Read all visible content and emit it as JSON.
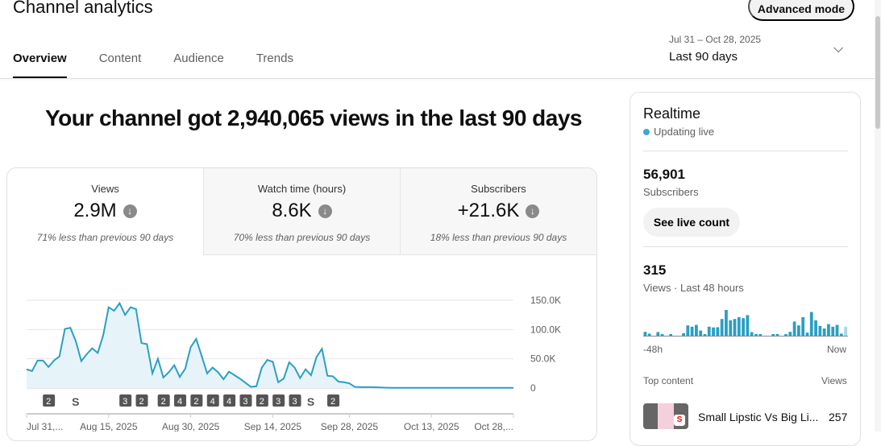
{
  "header": {
    "title": "Channel analytics",
    "advanced_mode": "Advanced mode",
    "tabs": [
      {
        "label": "Overview"
      },
      {
        "label": "Content"
      },
      {
        "label": "Audience"
      },
      {
        "label": "Trends"
      }
    ],
    "date_range": "Jul 31 – Oct 28, 2025",
    "period": "Last 90 days"
  },
  "headline": "Your channel got 2,940,065 views in the last 90 days",
  "metrics": [
    {
      "label": "Views",
      "value": "2.9M",
      "change": "71% less than previous 90 days"
    },
    {
      "label": "Watch time (hours)",
      "value": "8.6K",
      "change": "70% less than previous 90 days"
    },
    {
      "label": "Subscribers",
      "value": "+21.6K",
      "change": "18% less than previous 90 days"
    }
  ],
  "chart_data": {
    "type": "area",
    "series": [
      {
        "name": "Views",
        "values": [
          32000,
          29000,
          47000,
          47000,
          36000,
          47000,
          54000,
          101000,
          103000,
          80000,
          46000,
          58000,
          68000,
          60000,
          90000,
          138000,
          132000,
          145000,
          125000,
          138000,
          135000,
          77000,
          75000,
          25000,
          50000,
          18000,
          27000,
          39000,
          19000,
          33000,
          70000,
          84000,
          55000,
          25000,
          35000,
          27000,
          15000,
          28000,
          22000,
          16000,
          9000,
          2000,
          3000,
          35000,
          48000,
          45000,
          10000,
          16000,
          44000,
          35000,
          17000,
          32000,
          22000,
          53000,
          67000,
          21000,
          20000,
          11000,
          10000,
          8000,
          2000,
          1500,
          1500,
          1500,
          1200,
          800,
          500,
          300,
          300,
          300,
          300,
          300,
          300,
          300,
          300,
          300,
          300,
          300,
          300,
          300,
          300,
          300,
          300,
          300,
          300,
          300,
          300,
          300,
          300,
          300
        ]
      }
    ],
    "ylim": [
      0,
      150000
    ],
    "yticks": [
      "0",
      "50.0K",
      "100.0K",
      "150.0K"
    ],
    "ytick_values": [
      0,
      50000,
      100000,
      150000
    ],
    "xticks": [
      "Jul 31,...",
      "Aug 15, 2025",
      "Aug 30, 2025",
      "Sep 14, 2025",
      "Sep 28, 2025",
      "Oct 13, 2025",
      "Oct 28,..."
    ],
    "xtick_days": [
      0,
      15,
      30,
      45,
      59,
      74,
      89
    ],
    "markers": [
      {
        "day": 4,
        "label": "2"
      },
      {
        "day": 9,
        "label": "shorts"
      },
      {
        "day": 18,
        "label": "3"
      },
      {
        "day": 21,
        "label": "2"
      },
      {
        "day": 25,
        "label": "2"
      },
      {
        "day": 28,
        "label": "4"
      },
      {
        "day": 31,
        "label": "2"
      },
      {
        "day": 34,
        "label": "4"
      },
      {
        "day": 37,
        "label": "4"
      },
      {
        "day": 40,
        "label": "3"
      },
      {
        "day": 43,
        "label": "2"
      },
      {
        "day": 46,
        "label": "3"
      },
      {
        "day": 49,
        "label": "3"
      },
      {
        "day": 52,
        "label": "shorts"
      },
      {
        "day": 56,
        "label": "2"
      }
    ],
    "color": "#2a9fc4"
  },
  "realtime": {
    "title": "Realtime",
    "status": "Updating live",
    "subscribers": "56,901",
    "subscribers_label": "Subscribers",
    "see_live": "See live count",
    "views": "315",
    "views_label": "Views · Last 48 hours",
    "start": "-48h",
    "end": "Now",
    "hourly": [
      15,
      8,
      0,
      14,
      6,
      0,
      5,
      0,
      0,
      10,
      40,
      35,
      42,
      20,
      6,
      35,
      32,
      33,
      65,
      100,
      60,
      65,
      72,
      68,
      80,
      14,
      5,
      5,
      0,
      0,
      5,
      5,
      0,
      6,
      15,
      55,
      40,
      72,
      12,
      92,
      60,
      38,
      28,
      45,
      35,
      42,
      8,
      35
    ],
    "top_content_label": "Top content",
    "views_col": "Views",
    "top": [
      {
        "title": "Small Lipstic Vs Big Li...",
        "views": "257"
      }
    ]
  }
}
